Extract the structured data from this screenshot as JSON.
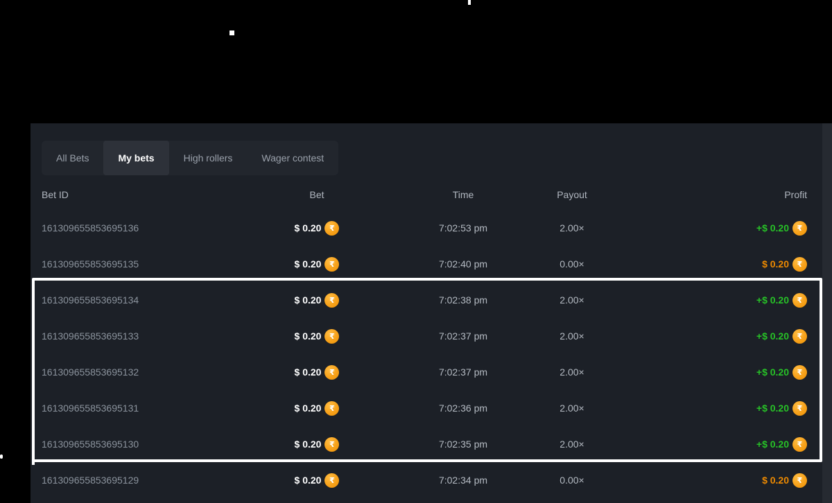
{
  "window": {
    "background": "#000000"
  },
  "panel": {
    "background": "#1c2027"
  },
  "currency": {
    "symbol": "₹",
    "icon": "inr-coin-icon"
  },
  "tabs": [
    {
      "label": "All Bets",
      "active": false
    },
    {
      "label": "My bets",
      "active": true
    },
    {
      "label": "High rollers",
      "active": false
    },
    {
      "label": "Wager contest",
      "active": false
    }
  ],
  "table": {
    "headers": [
      "Bet ID",
      "Bet",
      "Time",
      "Payout",
      "Profit"
    ],
    "rows": [
      {
        "bet_id": "161309655853695136",
        "bet": "$ 0.20",
        "time": "7:02:53 pm",
        "payout": "2.00×",
        "profit": "+$ 0.20",
        "result": "win"
      },
      {
        "bet_id": "161309655853695135",
        "bet": "$ 0.20",
        "time": "7:02:40 pm",
        "payout": "0.00×",
        "profit": "$ 0.20",
        "result": "loss"
      },
      {
        "bet_id": "161309655853695134",
        "bet": "$ 0.20",
        "time": "7:02:38 pm",
        "payout": "2.00×",
        "profit": "+$ 0.20",
        "result": "win"
      },
      {
        "bet_id": "161309655853695133",
        "bet": "$ 0.20",
        "time": "7:02:37 pm",
        "payout": "2.00×",
        "profit": "+$ 0.20",
        "result": "win"
      },
      {
        "bet_id": "161309655853695132",
        "bet": "$ 0.20",
        "time": "7:02:37 pm",
        "payout": "2.00×",
        "profit": "+$ 0.20",
        "result": "win"
      },
      {
        "bet_id": "161309655853695131",
        "bet": "$ 0.20",
        "time": "7:02:36 pm",
        "payout": "2.00×",
        "profit": "+$ 0.20",
        "result": "win"
      },
      {
        "bet_id": "161309655853695130",
        "bet": "$ 0.20",
        "time": "7:02:35 pm",
        "payout": "2.00×",
        "profit": "+$ 0.20",
        "result": "win"
      },
      {
        "bet_id": "161309655853695129",
        "bet": "$ 0.20",
        "time": "7:02:34 pm",
        "payout": "0.00×",
        "profit": "$ 0.20",
        "result": "loss"
      }
    ],
    "highlight_box": {
      "first_row_index": 2,
      "last_row_index": 6
    }
  },
  "colors": {
    "profit_win": "#27c227",
    "profit_loss": "#ee8a00",
    "coin": "#f7a11a",
    "highlight_border": "#ffffff"
  }
}
